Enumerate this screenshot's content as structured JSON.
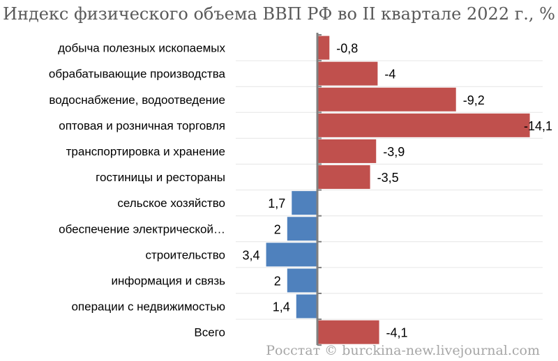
{
  "title": "Индекс физического объема ВВП РФ во II квартале 2022 г., %",
  "source_note": "Росстат © burckina-new.livejournal.com",
  "colors": {
    "negative": "#c0504d",
    "positive": "#4f81bd",
    "axis": "#808080",
    "separator": "#e6e6e6",
    "label_bg": "#ffffff"
  },
  "chart_data": {
    "type": "bar",
    "orientation": "horizontal",
    "title": "Индекс физического объема ВВП РФ во II квартале 2022 г., %",
    "categories": [
      "добыча полезных ископаемых",
      "обрабатывающие производства",
      "водоснабжение, водоотведение",
      "оптовая и розничная торговля",
      "транспортировка и хранение",
      "гостиницы и рестораны",
      "сельское хозяйство",
      "обеспечение электрической…",
      "строительство",
      "информация и связь",
      "операции с недвижимостью",
      "Всего"
    ],
    "values": [
      -0.8,
      -4,
      -9.2,
      -14.1,
      -3.9,
      -3.5,
      1.7,
      2,
      3.4,
      2,
      1.4,
      -4.1
    ],
    "value_labels": [
      "-0,8",
      "-4",
      "-9,2",
      "-14,1",
      "-3,9",
      "-3,5",
      "1,7",
      "2",
      "3,4",
      "2",
      "1,4",
      "-4,1"
    ],
    "negative_bars_extend": "right",
    "positive_bars_extend": "left",
    "grid": false,
    "legend": "none"
  }
}
